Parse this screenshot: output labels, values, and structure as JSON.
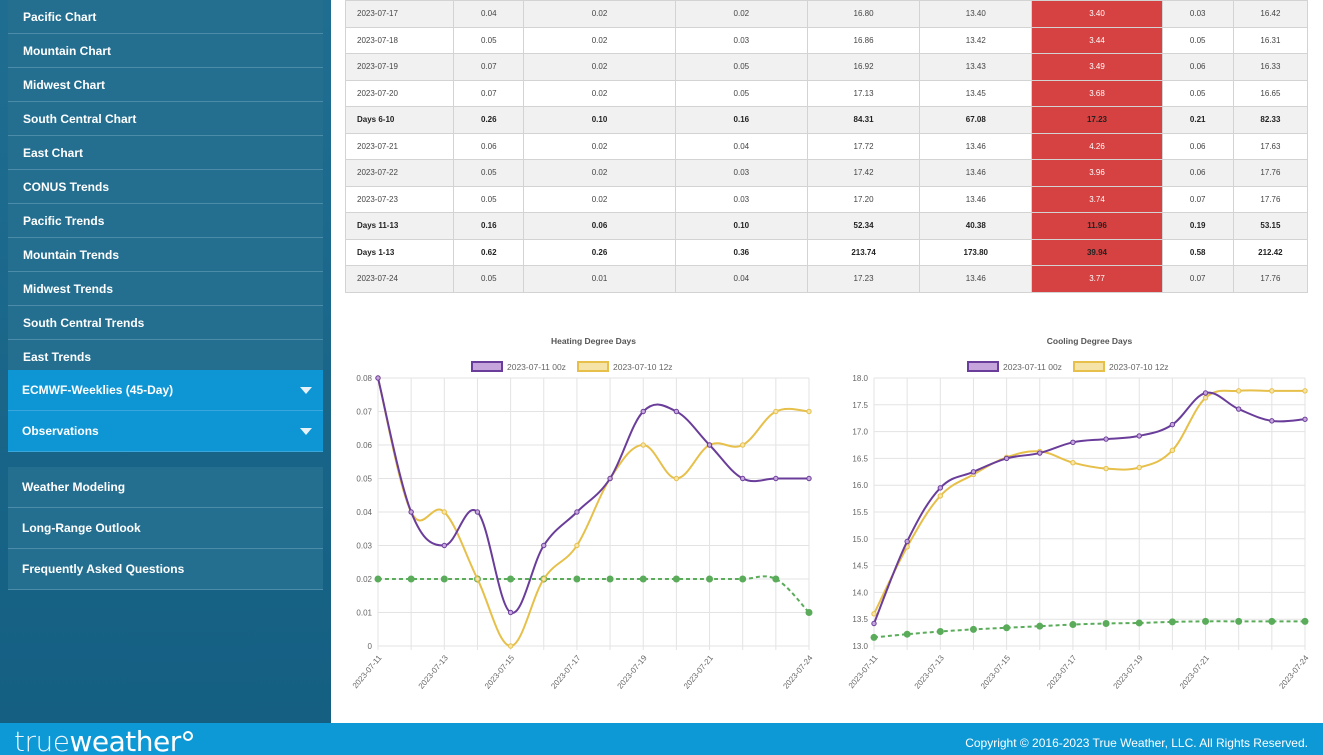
{
  "sidebar": {
    "sub_items": [
      "Pacific Chart",
      "Mountain Chart",
      "Midwest Chart",
      "South Central Chart",
      "East Chart",
      "CONUS Trends",
      "Pacific Trends",
      "Mountain Trends",
      "Midwest Trends",
      "South Central Trends",
      "East Trends"
    ],
    "dropdowns": [
      "ECMWF-Weeklies (45-Day)",
      "Observations"
    ],
    "links": [
      "Weather Modeling",
      "Long-Range Outlook",
      "Frequently Asked Questions"
    ]
  },
  "table": {
    "rows": [
      {
        "label": "2023-07-17",
        "vals": [
          "0.04",
          "0.02",
          "0.02",
          "16.80",
          "13.40",
          "3.40",
          "0.03",
          "16.42"
        ],
        "bold": false
      },
      {
        "label": "2023-07-18",
        "vals": [
          "0.05",
          "0.02",
          "0.03",
          "16.86",
          "13.42",
          "3.44",
          "0.05",
          "16.31"
        ],
        "bold": false
      },
      {
        "label": "2023-07-19",
        "vals": [
          "0.07",
          "0.02",
          "0.05",
          "16.92",
          "13.43",
          "3.49",
          "0.06",
          "16.33"
        ],
        "bold": false
      },
      {
        "label": "2023-07-20",
        "vals": [
          "0.07",
          "0.02",
          "0.05",
          "17.13",
          "13.45",
          "3.68",
          "0.05",
          "16.65"
        ],
        "bold": false
      },
      {
        "label": "Days 6-10",
        "vals": [
          "0.26",
          "0.10",
          "0.16",
          "84.31",
          "67.08",
          "17.23",
          "0.21",
          "82.33"
        ],
        "bold": true
      },
      {
        "label": "2023-07-21",
        "vals": [
          "0.06",
          "0.02",
          "0.04",
          "17.72",
          "13.46",
          "4.26",
          "0.06",
          "17.63"
        ],
        "bold": false
      },
      {
        "label": "2023-07-22",
        "vals": [
          "0.05",
          "0.02",
          "0.03",
          "17.42",
          "13.46",
          "3.96",
          "0.06",
          "17.76"
        ],
        "bold": false
      },
      {
        "label": "2023-07-23",
        "vals": [
          "0.05",
          "0.02",
          "0.03",
          "17.20",
          "13.46",
          "3.74",
          "0.07",
          "17.76"
        ],
        "bold": false
      },
      {
        "label": "Days 11-13",
        "vals": [
          "0.16",
          "0.06",
          "0.10",
          "52.34",
          "40.38",
          "11.96",
          "0.19",
          "53.15"
        ],
        "bold": true
      },
      {
        "label": "Days 1-13",
        "vals": [
          "0.62",
          "0.26",
          "0.36",
          "213.74",
          "173.80",
          "39.94",
          "0.58",
          "212.42"
        ],
        "bold": true
      },
      {
        "label": "2023-07-24",
        "vals": [
          "0.05",
          "0.01",
          "0.04",
          "17.23",
          "13.46",
          "3.77",
          "0.07",
          "17.76"
        ],
        "bold": false
      }
    ]
  },
  "chart_data": [
    {
      "type": "line",
      "title": "Heating Degree Days",
      "x": [
        "2023-07-11",
        "2023-07-12",
        "2023-07-13",
        "2023-07-14",
        "2023-07-15",
        "2023-07-16",
        "2023-07-17",
        "2023-07-18",
        "2023-07-19",
        "2023-07-20",
        "2023-07-21",
        "2023-07-22",
        "2023-07-23",
        "2023-07-24"
      ],
      "x_tick_labels": [
        "2023-07-11",
        "2023-07-13",
        "2023-07-15",
        "2023-07-17",
        "2023-07-19",
        "2023-07-21",
        "2023-07-24"
      ],
      "x_tick_index": [
        0,
        2,
        4,
        6,
        8,
        10,
        13
      ],
      "y_ticks": [
        "0",
        "0.01",
        "0.02",
        "0.03",
        "0.04",
        "0.05",
        "0.06",
        "0.07",
        "0.08"
      ],
      "ylim": [
        0,
        0.08
      ],
      "legend": "top",
      "grid": true,
      "series": [
        {
          "name": "2023-07-11 00z",
          "color": "#6a3d9a",
          "fill": "#c6a5dc",
          "dashed": false,
          "values": [
            0.08,
            0.04,
            0.03,
            0.04,
            0.01,
            0.03,
            0.04,
            0.05,
            0.07,
            0.07,
            0.06,
            0.05,
            0.05,
            0.05
          ]
        },
        {
          "name": "2023-07-10 12z",
          "color": "#e6c04a",
          "fill": "#f6e3a8",
          "dashed": false,
          "values": [
            0.08,
            0.04,
            0.04,
            0.02,
            0.0,
            0.02,
            0.03,
            0.05,
            0.06,
            0.05,
            0.06,
            0.06,
            0.07,
            0.07
          ]
        },
        {
          "name": "",
          "color": "#5aac5a",
          "dashed": true,
          "values": [
            0.02,
            0.02,
            0.02,
            0.02,
            0.02,
            0.02,
            0.02,
            0.02,
            0.02,
            0.02,
            0.02,
            0.02,
            0.02,
            0.01
          ]
        }
      ]
    },
    {
      "type": "line",
      "title": "Cooling Degree Days",
      "x": [
        "2023-07-11",
        "2023-07-12",
        "2023-07-13",
        "2023-07-14",
        "2023-07-15",
        "2023-07-16",
        "2023-07-17",
        "2023-07-18",
        "2023-07-19",
        "2023-07-20",
        "2023-07-21",
        "2023-07-22",
        "2023-07-23",
        "2023-07-24"
      ],
      "x_tick_labels": [
        "2023-07-11",
        "2023-07-13",
        "2023-07-15",
        "2023-07-17",
        "2023-07-19",
        "2023-07-21",
        "2023-07-24"
      ],
      "x_tick_index": [
        0,
        2,
        4,
        6,
        8,
        10,
        13
      ],
      "y_ticks": [
        "13.0",
        "13.5",
        "14.0",
        "14.5",
        "15.0",
        "15.5",
        "16.0",
        "16.5",
        "17.0",
        "17.5",
        "18.0"
      ],
      "ylim": [
        13.0,
        18.0
      ],
      "legend": "top",
      "grid": true,
      "series": [
        {
          "name": "2023-07-11 00z",
          "color": "#6a3d9a",
          "fill": "#c6a5dc",
          "dashed": false,
          "values": [
            13.42,
            14.95,
            15.95,
            16.25,
            16.5,
            16.6,
            16.8,
            16.86,
            16.92,
            17.13,
            17.72,
            17.42,
            17.2,
            17.23
          ]
        },
        {
          "name": "2023-07-10 12z",
          "color": "#e6c04a",
          "fill": "#f6e3a8",
          "dashed": false,
          "values": [
            13.6,
            14.85,
            15.8,
            16.2,
            16.52,
            16.63,
            16.42,
            16.31,
            16.33,
            16.65,
            17.63,
            17.76,
            17.76,
            17.76
          ]
        },
        {
          "name": "",
          "color": "#5aac5a",
          "dashed": true,
          "values": [
            13.16,
            13.22,
            13.27,
            13.31,
            13.34,
            13.37,
            13.4,
            13.42,
            13.43,
            13.45,
            13.46,
            13.46,
            13.46,
            13.46
          ]
        }
      ]
    }
  ],
  "footer": {
    "logo_part1": "true",
    "logo_part2": "weather",
    "copyright": "Copyright © 2016-2023 True Weather, LLC. All Rights Reserved."
  }
}
